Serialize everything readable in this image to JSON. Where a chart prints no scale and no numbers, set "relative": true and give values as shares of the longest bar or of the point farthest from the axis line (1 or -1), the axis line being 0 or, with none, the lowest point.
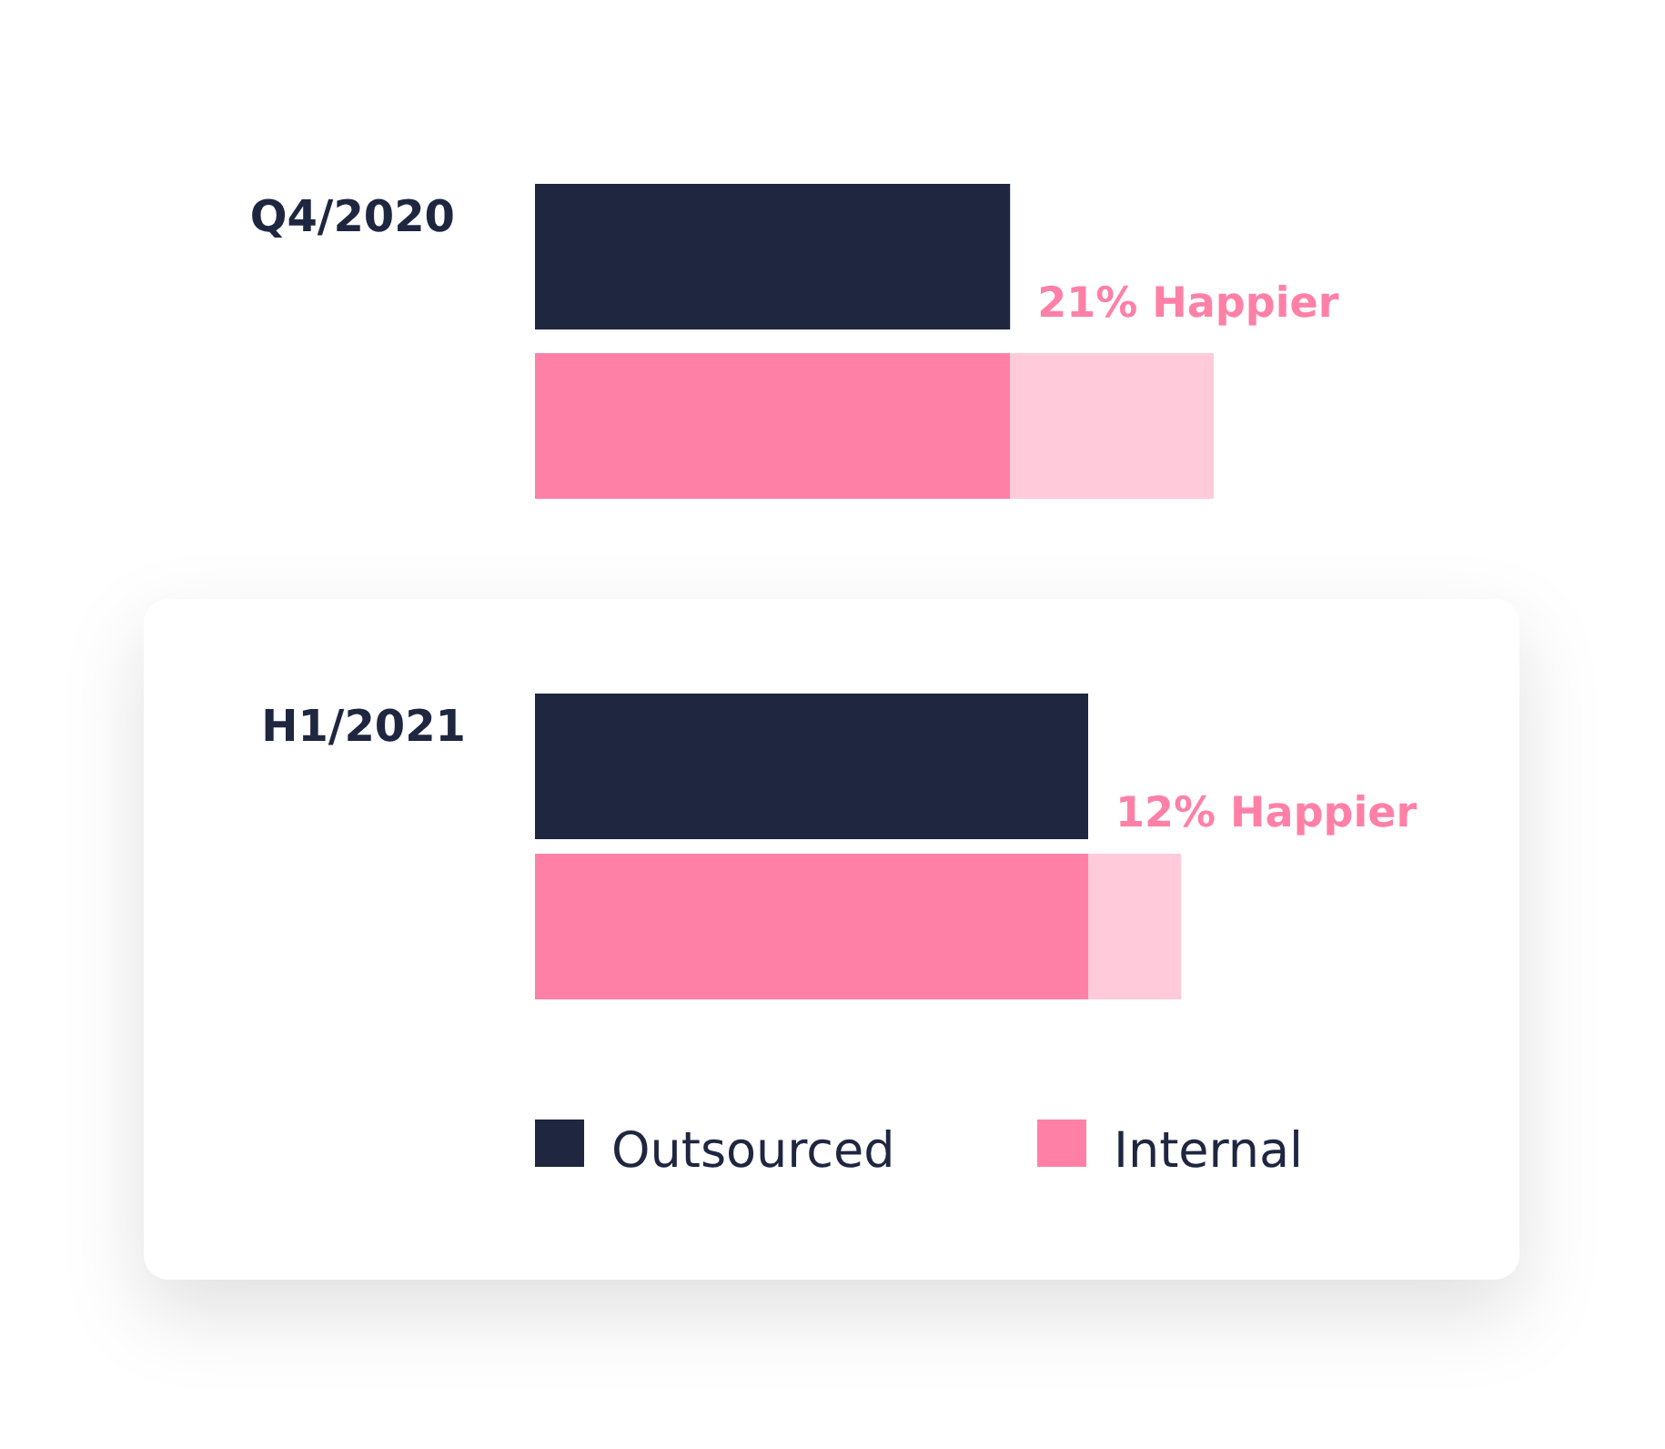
{
  "chart_data": {
    "type": "bar",
    "orientation": "horizontal",
    "relative": true,
    "categories": [
      "Q4/2020",
      "H1/2021"
    ],
    "series": [
      {
        "name": "Outsourced",
        "color": "#1e2640",
        "values": [
          0.7,
          0.815
        ]
      },
      {
        "name": "Internal",
        "color": "#ff80a6",
        "values": [
          1,
          0.952
        ]
      }
    ],
    "annotations": [
      "21% Happier",
      "12% Happier"
    ],
    "legend": "bottom"
  }
}
